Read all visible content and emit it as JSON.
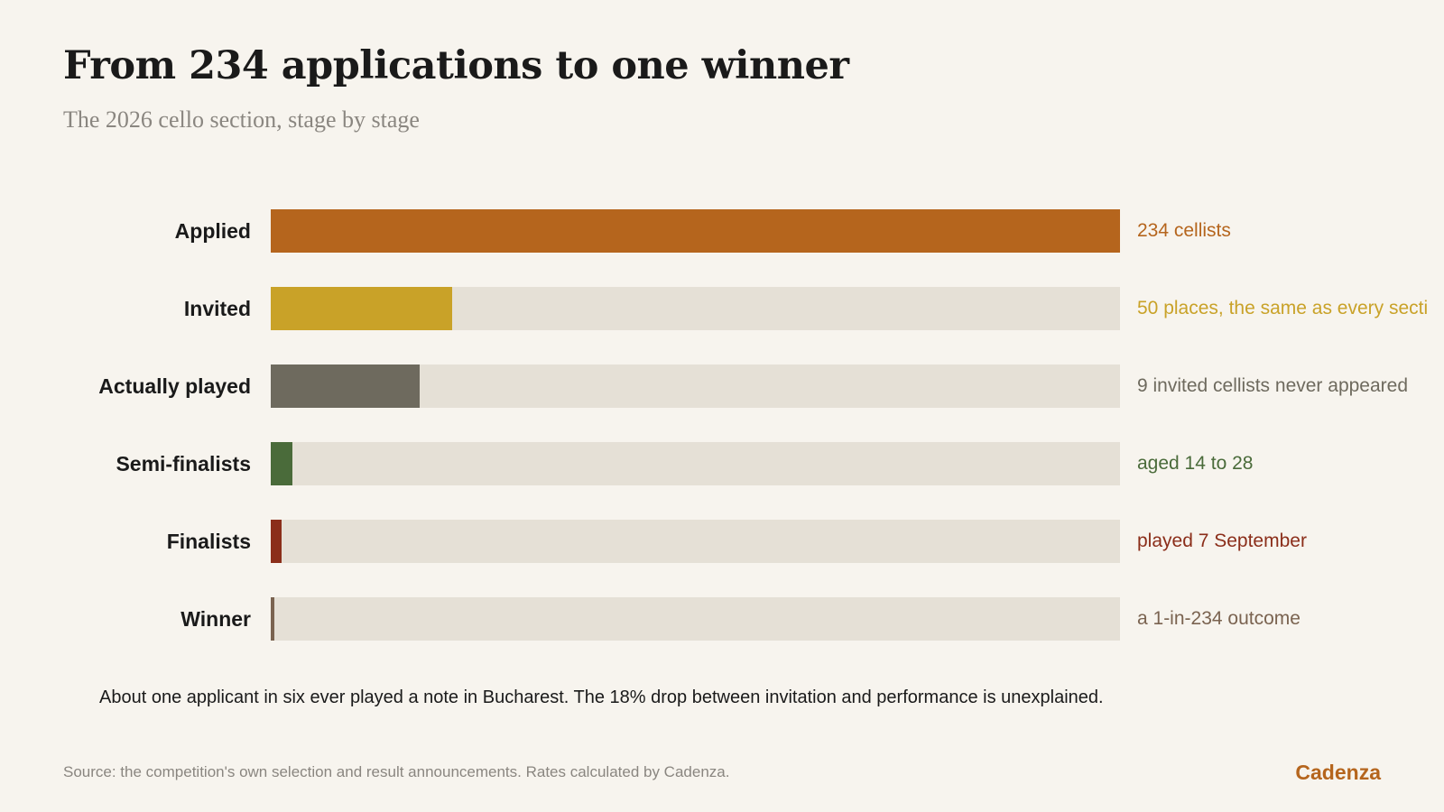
{
  "title": "From 234 applications to one winner",
  "subtitle": "The 2026 cello section, stage by stage",
  "chart_data": {
    "type": "bar",
    "orientation": "horizontal",
    "title": "From 234 applications to one winner",
    "subtitle": "The 2026 cello section, stage by stage",
    "categories": [
      "Applied",
      "Invited",
      "Actually played",
      "Semi-finalists",
      "Finalists",
      "Winner"
    ],
    "values": [
      234,
      50,
      41,
      6,
      3,
      1
    ],
    "max": 234,
    "annotations": [
      "234 cellists",
      "50 places, the same as every secti",
      "9 invited cellists never appeared",
      "aged 14 to 28",
      "played 7 September",
      "a 1-in-234 outcome"
    ],
    "colors": [
      "#b5651d",
      "#c9a228",
      "#6e6a5e",
      "#4a6b3a",
      "#8b2e1a",
      "#7a6350"
    ],
    "annotation_colors": [
      "#b5651d",
      "#c9a228",
      "#6e6a5e",
      "#4a6b3a",
      "#8b2e1a",
      "#7a6350"
    ],
    "track_color": "#e5e0d6",
    "grid": false,
    "legend": "none"
  },
  "note": "About one applicant in six ever played a note in Bucharest. The 18% drop between invitation and performance is unexplained.",
  "source": "Source: the competition's own selection and result announcements. Rates calculated by Cadenza.",
  "brand": "Cadenza",
  "colors": {
    "background": "#f7f4ee",
    "brand": "#b5651d",
    "muted_text": "#8a8680"
  }
}
